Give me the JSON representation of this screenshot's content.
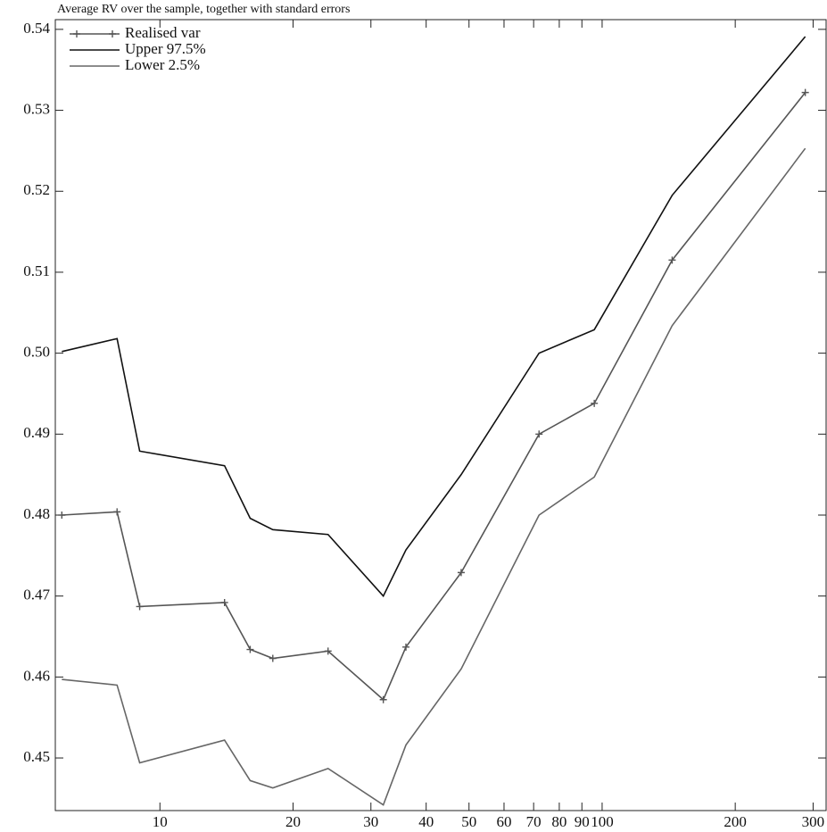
{
  "chart_data": {
    "type": "line",
    "title": "Average RV over the sample, together with standard errors",
    "x": [
      6,
      8,
      9,
      14,
      16,
      18,
      24,
      32,
      36,
      48,
      72,
      96,
      144,
      288
    ],
    "series": [
      {
        "name": "Realised var",
        "color": "#555555",
        "marker": "+",
        "values": [
          0.48,
          0.4804,
          0.4687,
          0.4692,
          0.4634,
          0.4623,
          0.4632,
          0.4572,
          0.4637,
          0.4729,
          0.49,
          0.4938,
          0.5115,
          0.5322
        ]
      },
      {
        "name": "Upper 97.5%",
        "color": "#111111",
        "values": [
          0.5002,
          0.5018,
          0.4879,
          0.4861,
          0.4796,
          0.4782,
          0.4776,
          0.47,
          0.4757,
          0.485,
          0.5,
          0.5029,
          0.5195,
          0.5391
        ]
      },
      {
        "name": "Lower 2.5%",
        "color": "#666666",
        "values": [
          0.4597,
          0.459,
          0.4494,
          0.4522,
          0.4472,
          0.4463,
          0.4487,
          0.4442,
          0.4516,
          0.461,
          0.48,
          0.4847,
          0.5034,
          0.5253
        ]
      }
    ],
    "xscale": "log",
    "xlim": [
      5.8,
      321
    ],
    "xticks": [
      10,
      20,
      30,
      40,
      50,
      60,
      70,
      80,
      90,
      100,
      200,
      300
    ],
    "ylim": [
      0.4435,
      0.5412
    ],
    "yticks": [
      0.45,
      0.46,
      0.47,
      0.48,
      0.49,
      {
        "value": 0.5,
        "label": "0.50"
      },
      0.51,
      0.52,
      0.53,
      0.54
    ],
    "legend": "upper left"
  }
}
